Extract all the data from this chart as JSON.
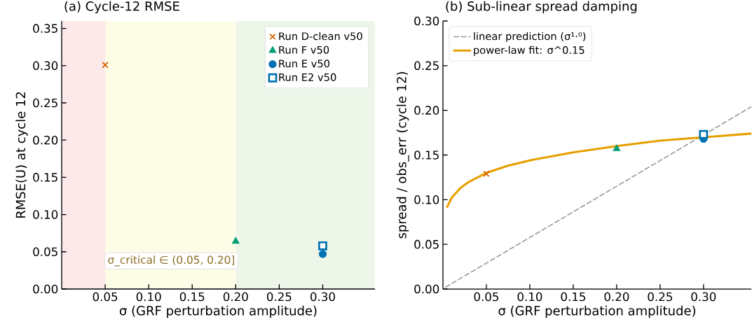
{
  "chart_data": [
    {
      "type": "scatter",
      "title": "(a) Cycle-12 RMSE",
      "xlabel": "σ (GRF perturbation amplitude)",
      "ylabel": "RMSE(U) at cycle 12",
      "xlim": [
        0,
        0.36
      ],
      "ylim": [
        0,
        0.36
      ],
      "xticks": [
        0.05,
        {
          "value": 0.1,
          "label": "0.10"
        },
        0.15,
        {
          "value": 0.2,
          "label": "0.20"
        },
        0.25,
        {
          "value": 0.3,
          "label": "0.30"
        }
      ],
      "yticks": [
        {
          "value": 0,
          "label": "0.00"
        },
        0.05,
        {
          "value": 0.1,
          "label": "0.10"
        },
        0.15,
        {
          "value": 0.2,
          "label": "0.20"
        },
        0.25,
        {
          "value": 0.3,
          "label": "0.30"
        },
        0.35
      ],
      "legend": "top right",
      "bands": [
        {
          "axis": "x",
          "from": 0,
          "to": 0.05,
          "color": "#fde9e9"
        },
        {
          "axis": "x",
          "from": 0.05,
          "to": 0.2,
          "color": "#fdfce6"
        },
        {
          "axis": "x",
          "from": 0.2,
          "to": 0.36,
          "color": "#eef6ea"
        }
      ],
      "annotations": [
        "σ_critical ∈ (0.05, 0.20]"
      ],
      "series": [
        {
          "name": "Run D-clean v50",
          "color": "#d55e00",
          "marker": "cross",
          "x": [
            0.05
          ],
          "values": [
            0.301
          ]
        },
        {
          "name": "Run F v50",
          "color": "#009e73",
          "marker": "triangle",
          "x": [
            0.2
          ],
          "values": [
            0.064
          ]
        },
        {
          "name": "Run E v50",
          "color": "#0072b2",
          "marker": "circle",
          "x": [
            0.3
          ],
          "values": [
            0.047
          ]
        },
        {
          "name": "Run E2 v50",
          "color": "#0072b2",
          "marker": "square",
          "x": [
            0.3
          ],
          "values": [
            0.058
          ]
        }
      ]
    },
    {
      "type": "scatter",
      "title": "(b) Sub-linear spread damping",
      "xlabel": "σ (GRF perturbation amplitude)",
      "ylabel": "spread / obs_err (cycle 12)",
      "xlim": [
        0,
        0.355
      ],
      "ylim": [
        0,
        0.3
      ],
      "xticks": [
        0.05,
        {
          "value": 0.1,
          "label": "0.10"
        },
        0.15,
        {
          "value": 0.2,
          "label": "0.20"
        },
        0.25,
        {
          "value": 0.3,
          "label": "0.30"
        }
      ],
      "yticks": [
        {
          "value": 0,
          "label": "0.00"
        },
        0.05,
        {
          "value": 0.1,
          "label": "0.10"
        },
        0.15,
        {
          "value": 0.2,
          "label": "0.20"
        },
        0.25,
        {
          "value": 0.3,
          "label": "0.30"
        }
      ],
      "legend": "top left",
      "series": [
        {
          "name": "linear prediction (σ¹·⁰)",
          "type": "line",
          "line_style": "dashed",
          "color": "#999999",
          "x": [
            0.003,
            0.355
          ],
          "values": [
            0.002,
            0.204
          ]
        },
        {
          "name": "power-law fit: σ^0.15",
          "type": "line",
          "line_style": "solid",
          "color": "#e69f00",
          "x": [
            0.005,
            0.01,
            0.02,
            0.03,
            0.05,
            0.075,
            0.1,
            0.15,
            0.2,
            0.25,
            0.355
          ],
          "values": [
            0.092,
            0.102,
            0.113,
            0.12,
            0.13,
            0.138,
            0.144,
            0.153,
            0.16,
            0.166,
            0.174
          ]
        },
        {
          "color": "#d55e00",
          "marker": "cross",
          "x": [
            0.05
          ],
          "values": [
            0.129
          ]
        },
        {
          "color": "#009e73",
          "marker": "triangle",
          "x": [
            0.2
          ],
          "values": [
            0.157
          ]
        },
        {
          "color": "#0072b2",
          "marker": "circle",
          "x": [
            0.3
          ],
          "values": [
            0.168
          ]
        },
        {
          "color": "#0072b2",
          "marker": "square",
          "x": [
            0.3
          ],
          "values": [
            0.173
          ]
        }
      ]
    }
  ]
}
